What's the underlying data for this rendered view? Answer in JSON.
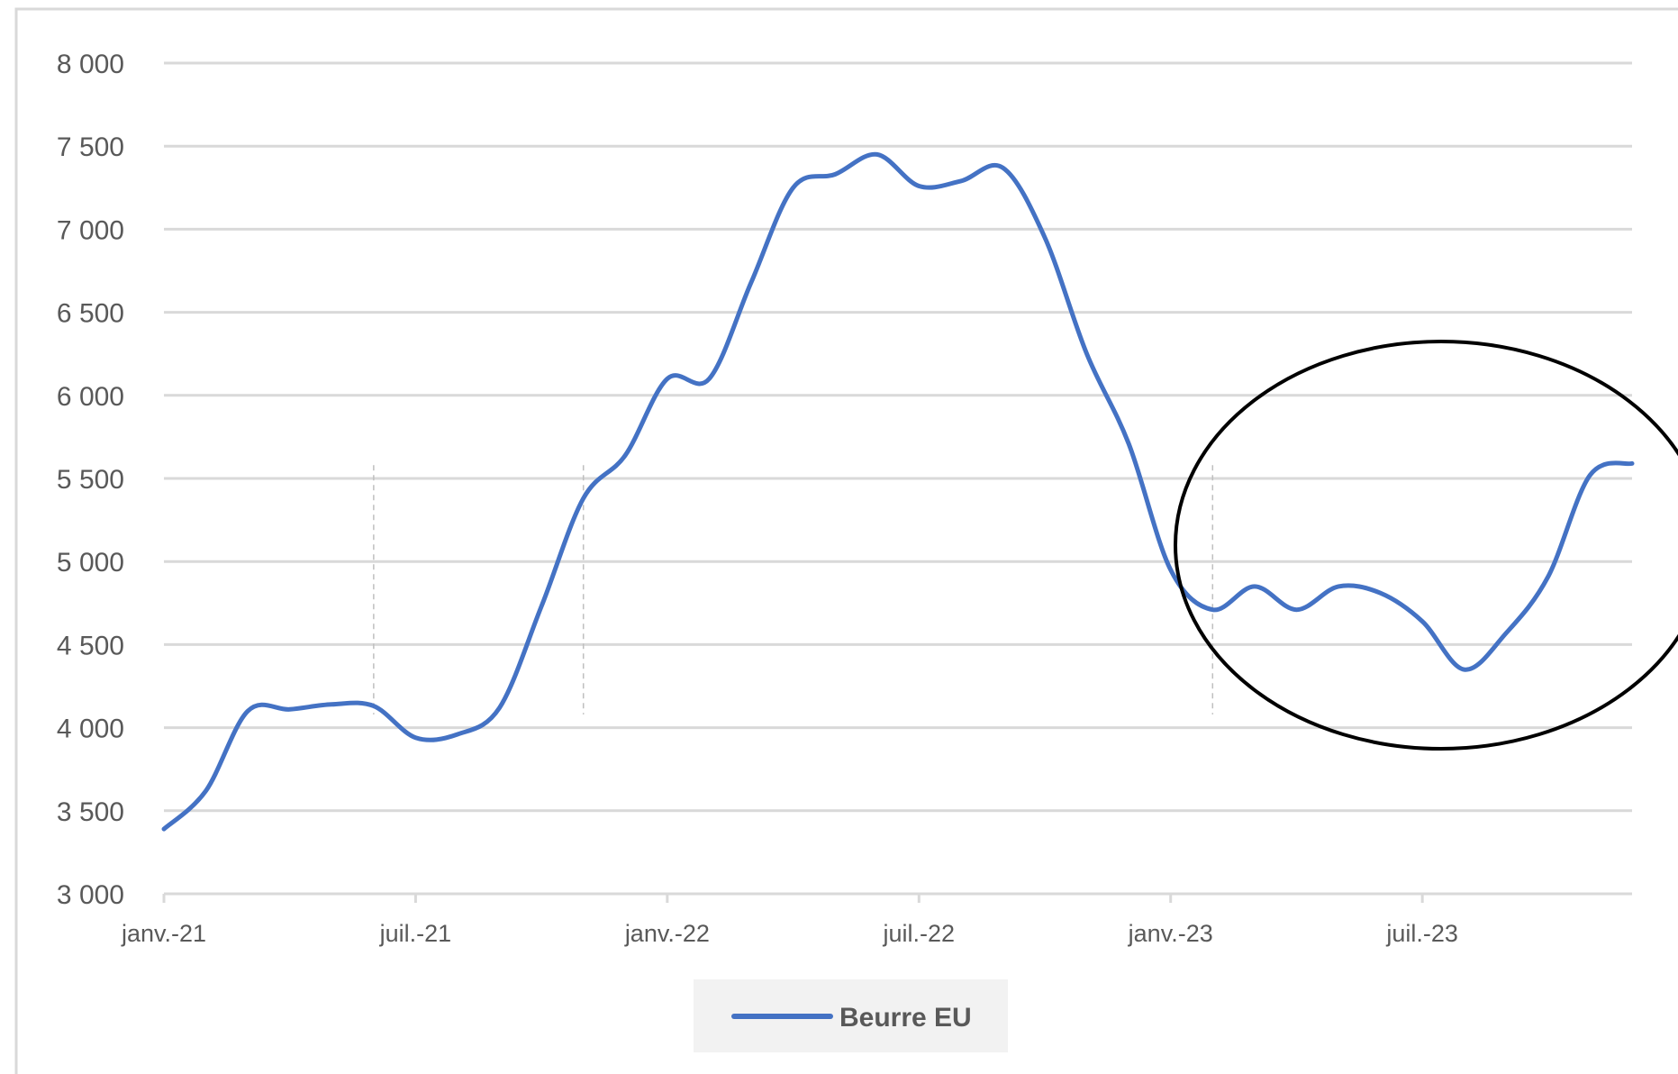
{
  "chart_data": {
    "type": "line",
    "title": "",
    "xlabel": "",
    "ylabel": "",
    "ylim": [
      3000,
      8000
    ],
    "y_ticks": [
      3000,
      3500,
      4000,
      4500,
      5000,
      5500,
      6000,
      6500,
      7000,
      7500,
      8000
    ],
    "y_tick_labels": [
      "3 000",
      "3 500",
      "4 000",
      "4 500",
      "5 000",
      "5 500",
      "6 000",
      "6 500",
      "7 000",
      "7 500",
      "8 000"
    ],
    "x_ticks": [
      "2021-01",
      "2021-07",
      "2022-01",
      "2022-07",
      "2023-01",
      "2023-07"
    ],
    "x_tick_labels": [
      "janv.-21",
      "juil.-21",
      "janv.-22",
      "juil.-22",
      "janv.-23",
      "juil.-23"
    ],
    "xlim": [
      "2021-01",
      "2023-12"
    ],
    "grid": "horizontal",
    "legend_position": "bottom",
    "colors": {
      "series": "#4472c4",
      "grid": "#d9d9d9",
      "text": "#595959",
      "annotation": "#000000",
      "guides": "#bfbfbf"
    },
    "series": [
      {
        "name": "Beurre EU",
        "x": [
          "2021-01",
          "2021-02",
          "2021-03",
          "2021-04",
          "2021-05",
          "2021-06",
          "2021-07",
          "2021-08",
          "2021-09",
          "2021-10",
          "2021-11",
          "2021-12",
          "2022-01",
          "2022-02",
          "2022-03",
          "2022-04",
          "2022-05",
          "2022-06",
          "2022-07",
          "2022-08",
          "2022-09",
          "2022-10",
          "2022-11",
          "2022-12",
          "2023-01",
          "2023-02",
          "2023-03",
          "2023-04",
          "2023-05",
          "2023-06",
          "2023-07",
          "2023-08",
          "2023-09",
          "2023-10",
          "2023-11",
          "2023-12"
        ],
        "y": [
          3390,
          3620,
          4100,
          4110,
          4140,
          4130,
          3940,
          3960,
          4120,
          4730,
          5380,
          5640,
          6100,
          6100,
          6680,
          7250,
          7330,
          7450,
          7260,
          7290,
          7370,
          6950,
          6250,
          5710,
          4950,
          4710,
          4850,
          4710,
          4850,
          4810,
          4640,
          4350,
          4570,
          4910,
          5520,
          5590
        ]
      }
    ],
    "guide_lines": [
      "2021-06",
      "2021-11",
      "2023-02"
    ],
    "annotation": "ellipse highlighting 2023"
  }
}
